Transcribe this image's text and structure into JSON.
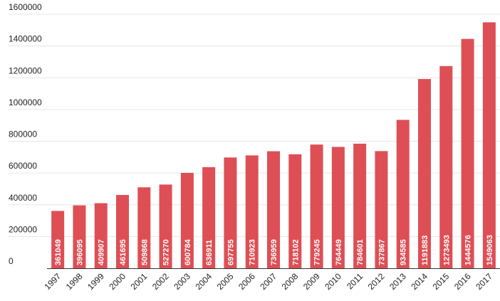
{
  "chart_data": {
    "type": "bar",
    "categories": [
      "1997",
      "1998",
      "1999",
      "2000",
      "2001",
      "2002",
      "2003",
      "2004",
      "2005",
      "2006",
      "2007",
      "2008",
      "2009",
      "2010",
      "2011",
      "2012",
      "2013",
      "2014",
      "2015",
      "2016",
      "2017"
    ],
    "values": [
      361049,
      396095,
      409907,
      461695,
      509868,
      527270,
      600784,
      636911,
      697755,
      710923,
      736959,
      718102,
      779245,
      764449,
      784601,
      737867,
      934585,
      1191883,
      1273493,
      1444576,
      1549063
    ],
    "data_labels": [
      "361049",
      "396095",
      "409907",
      "461695",
      "509868",
      "527270",
      "600784",
      "636911",
      "697755",
      "710923",
      "736959",
      "718102",
      "779245",
      "764449",
      "784601",
      "737867",
      "934585",
      "1191883",
      "1273493",
      "1444576",
      "1549063"
    ],
    "yticks": [
      0,
      200000,
      400000,
      600000,
      800000,
      1000000,
      1200000,
      1400000,
      1600000
    ],
    "ytick_labels": [
      "0",
      "200000",
      "400000",
      "600000",
      "800000",
      "1000000",
      "1200000",
      "1400000",
      "1600000"
    ],
    "ylim": [
      0,
      1600000
    ],
    "grid": true,
    "bar_color": "#dd4f55",
    "title": "",
    "xlabel": "",
    "ylabel": ""
  }
}
